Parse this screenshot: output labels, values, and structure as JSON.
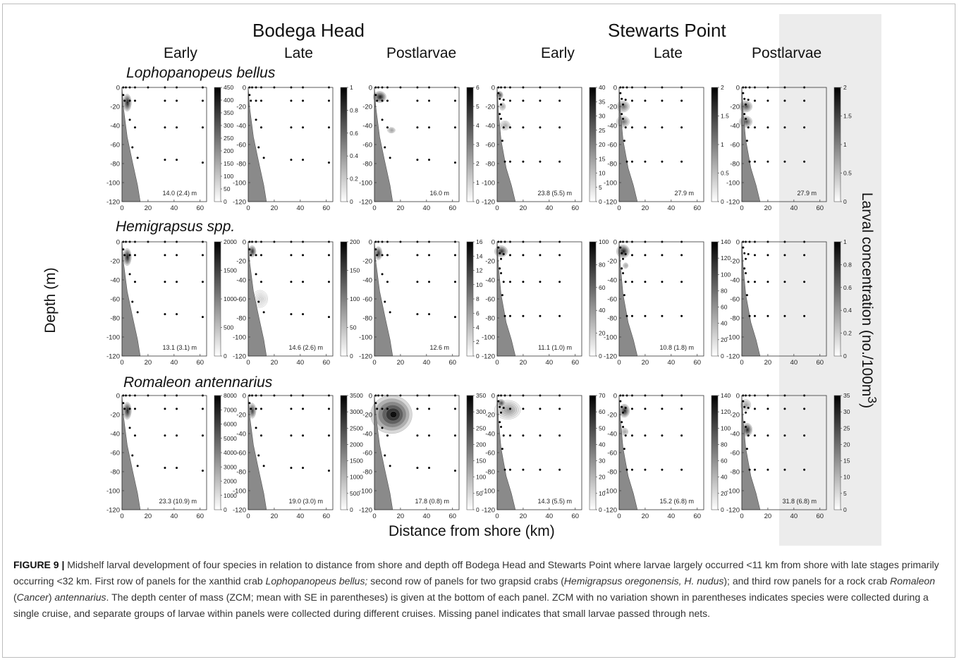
{
  "sites": [
    "Bodega Head",
    "Stewarts Point"
  ],
  "stages": [
    "Early",
    "Late",
    "Postlarvae",
    "Early",
    "Late",
    "Postlarvae"
  ],
  "species": [
    "Lophopanopeus bellus",
    "Hemigrapsus spp.",
    "Romaleon antennarius"
  ],
  "y_axis_label": "Depth (m)",
  "x_axis_label": "Distance from shore (km)",
  "colorbar_label": "Larval concentration (no./100m",
  "colorbar_label_sup": "3",
  "colorbar_label_end": ")",
  "caption": {
    "lead": "FIGURE 9 |",
    "t1": " Midshelf larval development of four species in relation to distance from shore and depth off Bodega Head and Stewarts Point where larvae largely occurred <11 km from shore with late stages primarily occurring <32 km. First row of panels for the xanthid crab ",
    "i1": "Lophopanopeus bellus;",
    "t2": " second row of panels for two grapsid crabs (",
    "i2": "Hemigrapsus oregonensis, H. nudus",
    "t3": "); and third row panels for a rock crab ",
    "i3": "Romaleon",
    "t4": " (",
    "i4": "Cancer",
    "t5": ") ",
    "i5": "antennarius",
    "t6": ". The depth center of mass (ZCM; mean with SE in parentheses) is given at the bottom of each panel. ZCM with no variation shown in parentheses indicates species were collected during a single cruise, and separate groups of larvae within panels were collected during different cruises. Missing panel indicates that small larvae passed through nets."
  },
  "chart_data": {
    "type": "heatmap",
    "xlabel": "Distance from shore (km)",
    "ylabel": "Depth (m)",
    "bodega": {
      "xlim": [
        0,
        65
      ],
      "ylim": [
        -120,
        0
      ],
      "x_ticks": [
        0,
        20,
        40,
        60
      ],
      "y_ticks": [
        0,
        -20,
        -40,
        -60,
        -80,
        -100,
        -120
      ],
      "stations": [
        [
          1,
          0
        ],
        [
          3,
          0
        ],
        [
          6,
          0
        ],
        [
          10,
          0
        ],
        [
          20,
          0
        ],
        [
          33,
          0
        ],
        [
          42,
          0
        ],
        [
          62,
          0
        ],
        [
          1,
          -8
        ],
        [
          2,
          -14
        ],
        [
          6,
          -14
        ],
        [
          10,
          -14
        ],
        [
          33,
          -14
        ],
        [
          42,
          -14
        ],
        [
          62,
          -14
        ],
        [
          6,
          -34
        ],
        [
          10,
          -42
        ],
        [
          33,
          -42
        ],
        [
          42,
          -42
        ],
        [
          62,
          -42
        ],
        [
          8,
          -63
        ],
        [
          12,
          -74
        ],
        [
          33,
          -76
        ],
        [
          42,
          -76
        ],
        [
          62,
          -79
        ]
      ],
      "shelf": [
        [
          0,
          0
        ],
        [
          1,
          -20
        ],
        [
          4,
          -52
        ],
        [
          8,
          -78
        ],
        [
          12,
          -103
        ],
        [
          14,
          -120
        ],
        [
          0,
          -120
        ]
      ]
    },
    "stewarts": {
      "xlim": [
        0,
        65
      ],
      "ylim": [
        -120,
        0
      ],
      "x_ticks": [
        0,
        20,
        40,
        60
      ],
      "y_ticks": [
        0,
        -20,
        -40,
        -60,
        -80,
        -100,
        -120
      ],
      "stations": [
        [
          1,
          0
        ],
        [
          3,
          0
        ],
        [
          6,
          0
        ],
        [
          10,
          0
        ],
        [
          20,
          0
        ],
        [
          33,
          0
        ],
        [
          48,
          0
        ],
        [
          1,
          -6
        ],
        [
          2,
          -12
        ],
        [
          3,
          -18
        ],
        [
          5,
          -13
        ],
        [
          10,
          -14
        ],
        [
          20,
          -14
        ],
        [
          33,
          -14
        ],
        [
          48,
          -14
        ],
        [
          2,
          -28
        ],
        [
          3,
          -33
        ],
        [
          5,
          -42
        ],
        [
          10,
          -42
        ],
        [
          20,
          -42
        ],
        [
          33,
          -42
        ],
        [
          48,
          -42
        ],
        [
          4,
          -56
        ],
        [
          6,
          -78
        ],
        [
          10,
          -78
        ],
        [
          20,
          -78
        ],
        [
          33,
          -78
        ],
        [
          48,
          -78
        ]
      ],
      "shelf": [
        [
          0,
          0
        ],
        [
          1,
          -25
        ],
        [
          3,
          -55
        ],
        [
          7,
          -85
        ],
        [
          11,
          -103
        ],
        [
          14,
          -120
        ],
        [
          0,
          -120
        ]
      ]
    },
    "panels": [
      {
        "species": "Lophopanopeus bellus",
        "site": "Bodega Head",
        "stage": "Early",
        "cmax": 450,
        "cticks": [
          0,
          50,
          100,
          150,
          200,
          250,
          300,
          350,
          400,
          450
        ],
        "zcm": "14.0 (2.4) m",
        "blobs": [
          {
            "x": 4,
            "y": -16,
            "rx": 3.2,
            "ry": 9,
            "v": 0.95
          }
        ]
      },
      {
        "species": "Lophopanopeus bellus",
        "site": "Bodega Head",
        "stage": "Late",
        "cmax": 1,
        "cticks": [
          0,
          0.2,
          0.4,
          0.6,
          0.8,
          1
        ],
        "zcm": "",
        "blobs": []
      },
      {
        "species": "Lophopanopeus bellus",
        "site": "Bodega Head",
        "stage": "Postlarvae",
        "cmax": 6,
        "cticks": [
          0,
          1,
          2,
          3,
          4,
          5,
          6
        ],
        "zcm": "16.0 m",
        "blobs": [
          {
            "x": 4,
            "y": -10,
            "rx": 5,
            "ry": 6,
            "v": 0.95
          },
          {
            "x": 13,
            "y": -45,
            "rx": 3,
            "ry": 3,
            "v": 0.35
          }
        ]
      },
      {
        "species": "Lophopanopeus bellus",
        "site": "Stewarts Point",
        "stage": "Early",
        "cmax": 40,
        "cticks": [
          0,
          5,
          10,
          15,
          20,
          25,
          30,
          35,
          40
        ],
        "zcm": "23.8 (5.5) m",
        "blobs": [
          {
            "x": 2,
            "y": -8,
            "rx": 2.5,
            "ry": 4,
            "v": 0.8
          },
          {
            "x": 4,
            "y": -20,
            "rx": 2.5,
            "ry": 4,
            "v": 0.3
          },
          {
            "x": 6,
            "y": -40,
            "rx": 4,
            "ry": 5,
            "v": 0.3
          }
        ]
      },
      {
        "species": "Lophopanopeus bellus",
        "site": "Stewarts Point",
        "stage": "Late",
        "cmax": 2,
        "cticks": [
          0,
          0.5,
          1,
          1.5,
          2
        ],
        "zcm": "27.9 m",
        "blobs": [
          {
            "x": 3,
            "y": -20,
            "rx": 5,
            "ry": 6,
            "v": 0.55
          },
          {
            "x": 3,
            "y": -36,
            "rx": 5,
            "ry": 6,
            "v": 0.55
          }
        ]
      },
      {
        "species": "Lophopanopeus bellus",
        "site": "Stewarts Point",
        "stage": "Postlarvae",
        "cmax": 2,
        "cticks": [
          0,
          0.5,
          1,
          1.5,
          2
        ],
        "zcm": "27.9 m",
        "blobs": [
          {
            "x": 3,
            "y": -20,
            "rx": 5,
            "ry": 6,
            "v": 0.7
          },
          {
            "x": 3,
            "y": -36,
            "rx": 5,
            "ry": 6,
            "v": 0.7
          }
        ]
      },
      {
        "species": "Hemigrapsus spp.",
        "site": "Bodega Head",
        "stage": "Early",
        "cmax": 2000,
        "cticks": [
          0,
          500,
          1000,
          1500,
          2000
        ],
        "zcm": "13.1 (3.1) m",
        "blobs": [
          {
            "x": 4,
            "y": -16,
            "rx": 3.2,
            "ry": 9,
            "v": 0.95
          }
        ]
      },
      {
        "species": "Hemigrapsus spp.",
        "site": "Bodega Head",
        "stage": "Late",
        "cmax": 200,
        "cticks": [
          0,
          50,
          100,
          150,
          200
        ],
        "zcm": "14.6 (2.6) m",
        "blobs": [
          {
            "x": 3,
            "y": -10,
            "rx": 3,
            "ry": 6,
            "v": 0.9
          },
          {
            "x": 9,
            "y": -60,
            "rx": 6,
            "ry": 9,
            "v": 0.12
          }
        ]
      },
      {
        "species": "Hemigrapsus spp.",
        "site": "Bodega Head",
        "stage": "Postlarvae",
        "cmax": 16,
        "cticks": [
          0,
          2,
          4,
          6,
          8,
          10,
          12,
          14,
          16
        ],
        "zcm": "12.6 m",
        "blobs": [
          {
            "x": 3,
            "y": -12,
            "rx": 3,
            "ry": 7,
            "v": 0.85
          }
        ]
      },
      {
        "species": "Hemigrapsus spp.",
        "site": "Stewarts Point",
        "stage": "Early",
        "cmax": 100,
        "cticks": [
          0,
          20,
          40,
          60,
          80,
          100
        ],
        "zcm": "11.1 (1.0) m",
        "blobs": [
          {
            "x": 3,
            "y": -10,
            "rx": 5,
            "ry": 6,
            "v": 0.85
          }
        ]
      },
      {
        "species": "Hemigrapsus spp.",
        "site": "Stewarts Point",
        "stage": "Late",
        "cmax": 140,
        "cticks": [
          0,
          20,
          40,
          60,
          80,
          100,
          120,
          140
        ],
        "zcm": "10.8 (1.8) m",
        "blobs": [
          {
            "x": 3,
            "y": -10,
            "rx": 5,
            "ry": 7,
            "v": 0.95
          },
          {
            "x": 5,
            "y": -25,
            "rx": 2,
            "ry": 3,
            "v": 0.3
          }
        ]
      },
      {
        "species": "Hemigrapsus spp.",
        "site": "Stewarts Point",
        "stage": "Postlarvae",
        "cmax": 1,
        "cticks": [
          0,
          0.2,
          0.4,
          0.6,
          0.8,
          1
        ],
        "zcm": "",
        "blobs": []
      },
      {
        "species": "Romaleon antennarius",
        "site": "Bodega Head",
        "stage": "Early",
        "cmax": 8000,
        "cticks": [
          0,
          1000,
          2000,
          3000,
          4000,
          5000,
          6000,
          7000,
          8000
        ],
        "zcm": "23.3 (10.9) m",
        "blobs": [
          {
            "x": 4,
            "y": -16,
            "rx": 3.2,
            "ry": 9,
            "v": 0.95
          }
        ]
      },
      {
        "species": "Romaleon antennarius",
        "site": "Bodega Head",
        "stage": "Late",
        "cmax": 3500,
        "cticks": [
          0,
          500,
          1000,
          1500,
          2000,
          2500,
          3000,
          3500
        ],
        "zcm": "19.0 (3.0) m",
        "blobs": [
          {
            "x": 3,
            "y": -16,
            "rx": 3,
            "ry": 8,
            "v": 0.8
          }
        ]
      },
      {
        "species": "Romaleon antennarius",
        "site": "Bodega Head",
        "stage": "Postlarvae",
        "cmax": 350,
        "cticks": [
          0,
          50,
          100,
          150,
          200,
          250,
          300,
          350
        ],
        "zcm": "17.8 (0.8) m",
        "blobs": [
          {
            "x": 13,
            "y": -20,
            "rx": 16,
            "ry": 20,
            "v": 0.95
          }
        ]
      },
      {
        "species": "Romaleon antennarius",
        "site": "Stewarts Point",
        "stage": "Early",
        "cmax": 70,
        "cticks": [
          0,
          10,
          20,
          30,
          40,
          50,
          60,
          70
        ],
        "zcm": "14.3 (5.5) m",
        "blobs": [
          {
            "x": 8,
            "y": -15,
            "rx": 10,
            "ry": 10,
            "v": 0.4
          },
          {
            "x": 3,
            "y": -8,
            "rx": 3,
            "ry": 4,
            "v": 0.8
          }
        ]
      },
      {
        "species": "Romaleon antennarius",
        "site": "Stewarts Point",
        "stage": "Late",
        "cmax": 140,
        "cticks": [
          0,
          20,
          40,
          60,
          80,
          100,
          120,
          140
        ],
        "zcm": "15.2 (6.8) m",
        "blobs": [
          {
            "x": 4,
            "y": -16,
            "rx": 4,
            "ry": 7,
            "v": 0.9
          },
          {
            "x": 4,
            "y": -38,
            "rx": 3,
            "ry": 4,
            "v": 0.3
          }
        ]
      },
      {
        "species": "Romaleon antennarius",
        "site": "Stewarts Point",
        "stage": "Postlarvae",
        "cmax": 35,
        "cticks": [
          0,
          5,
          10,
          15,
          20,
          25,
          30,
          35
        ],
        "zcm": "31.8 (6.8) m",
        "blobs": [
          {
            "x": 3,
            "y": -10,
            "rx": 4,
            "ry": 6,
            "v": 0.35
          },
          {
            "x": 4,
            "y": -36,
            "rx": 4,
            "ry": 7,
            "v": 0.9
          }
        ]
      }
    ]
  }
}
